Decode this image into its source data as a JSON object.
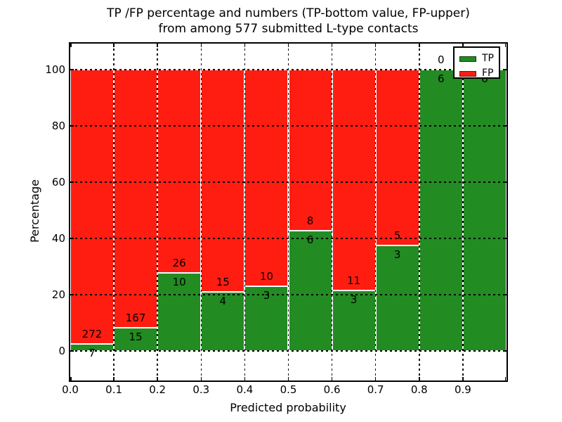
{
  "title": {
    "line1": "TP /FP percentage and numbers (TP-bottom value, FP-upper)",
    "line2": "from among 577 submitted L-type contacts"
  },
  "chart_data": {
    "type": "bar",
    "stacked": true,
    "units": "percent of contacts in each probability bin",
    "total_contacts": 577,
    "xlabel": "Predicted probability",
    "ylabel": "Percentage",
    "xlim": [
      0.0,
      1.0
    ],
    "ylim": [
      -10.5,
      109.75
    ],
    "x_tick_labels": [
      "0.0",
      "0.1",
      "0.2",
      "0.3",
      "0.4",
      "0.5",
      "0.6",
      "0.7",
      "0.8",
      "0.9"
    ],
    "y_tick_values": [
      0,
      20,
      40,
      60,
      80,
      100
    ],
    "grid": {
      "on": true,
      "style": "dotted",
      "color": "#000000"
    },
    "bar_edge_color": "#ffffff",
    "colors": {
      "tp": "#228b22",
      "fp": "#ff1d12"
    },
    "legend": [
      {
        "label": "TP",
        "color": "#228b22"
      },
      {
        "label": "FP",
        "color": "#ff1d12"
      }
    ],
    "legend_position": "upper right",
    "bins": [
      {
        "range": [
          0.0,
          0.1
        ],
        "tp": 7,
        "fp": 272,
        "tp_pct": 2.5
      },
      {
        "range": [
          0.1,
          0.2
        ],
        "tp": 15,
        "fp": 167,
        "tp_pct": 8.2
      },
      {
        "range": [
          0.2,
          0.3
        ],
        "tp": 10,
        "fp": 26,
        "tp_pct": 27.8
      },
      {
        "range": [
          0.3,
          0.4
        ],
        "tp": 4,
        "fp": 15,
        "tp_pct": 21.1
      },
      {
        "range": [
          0.4,
          0.5
        ],
        "tp": 3,
        "fp": 10,
        "tp_pct": 23.1
      },
      {
        "range": [
          0.5,
          0.6
        ],
        "tp": 6,
        "fp": 8,
        "tp_pct": 42.9
      },
      {
        "range": [
          0.6,
          0.7
        ],
        "tp": 3,
        "fp": 11,
        "tp_pct": 21.4
      },
      {
        "range": [
          0.7,
          0.8
        ],
        "tp": 3,
        "fp": 5,
        "tp_pct": 37.5
      },
      {
        "range": [
          0.8,
          0.9
        ],
        "tp": 6,
        "fp": 0,
        "tp_pct": 100.0
      },
      {
        "range": [
          0.9,
          1.0
        ],
        "tp": 6,
        "fp": 0,
        "tp_pct": 100.0
      }
    ]
  }
}
